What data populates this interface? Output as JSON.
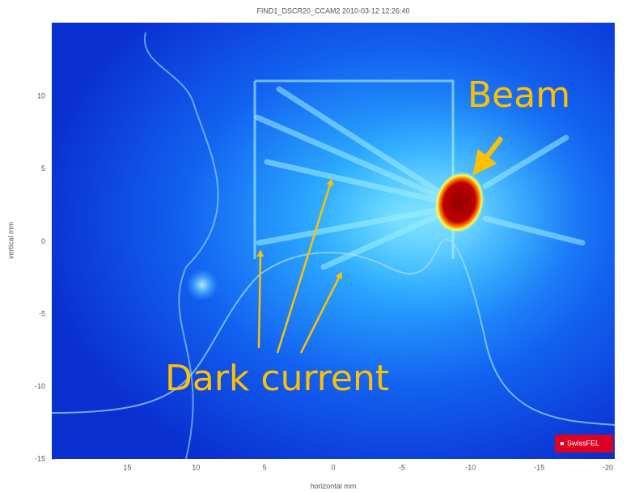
{
  "chart_data": {
    "type": "image",
    "title": "FIND1_DSCR20_CCAM2 2010-03-12 12:26:40",
    "xlabel": "horizontal mm",
    "ylabel": "vertical mm",
    "xlim": [
      20.5,
      -20.5
    ],
    "ylim": [
      -15,
      15.1
    ],
    "xticks": [
      15,
      10,
      5,
      0,
      -5,
      -10,
      -15,
      -20
    ],
    "yticks": [
      -15,
      -10,
      -5,
      0,
      5,
      10
    ],
    "annotations": [
      "Beam",
      "Dark current"
    ],
    "logo": "SwissFEL"
  }
}
